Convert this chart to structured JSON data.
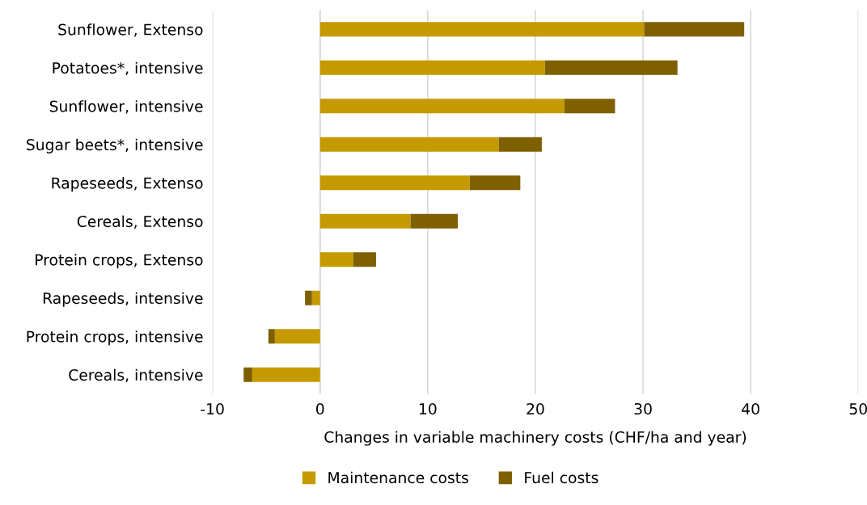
{
  "chart_data": {
    "type": "bar",
    "orientation": "horizontal",
    "stacked": true,
    "xlabel": "Changes in variable machinery costs (CHF/ha and year)",
    "categories": [
      "Sunflower, Extenso",
      "Potatoes*, intensive",
      "Sunflower, intensive",
      "Sugar beets*, intensive",
      "Rapeseeds, Extenso",
      "Cereals, Extenso",
      "Protein crops, Extenso",
      "Rapeseeds, intensive",
      "Protein crops, intensive",
      "Cereals, intensive"
    ],
    "series": [
      {
        "name": "Maintenance costs",
        "color": "#c49a00",
        "values": [
          30.1,
          20.9,
          22.7,
          16.6,
          13.9,
          8.4,
          3.1,
          -0.75,
          -4.2,
          -6.3
        ]
      },
      {
        "name": "Fuel costs",
        "color": "#7f6000",
        "values": [
          9.3,
          12.3,
          4.7,
          4.0,
          4.7,
          4.4,
          2.1,
          -0.65,
          -0.6,
          -0.8
        ]
      }
    ],
    "xlim": [
      -10,
      50
    ],
    "xticks": [
      -10,
      0,
      10,
      20,
      30,
      40,
      50
    ],
    "grid": "x",
    "legend": "bottom"
  }
}
